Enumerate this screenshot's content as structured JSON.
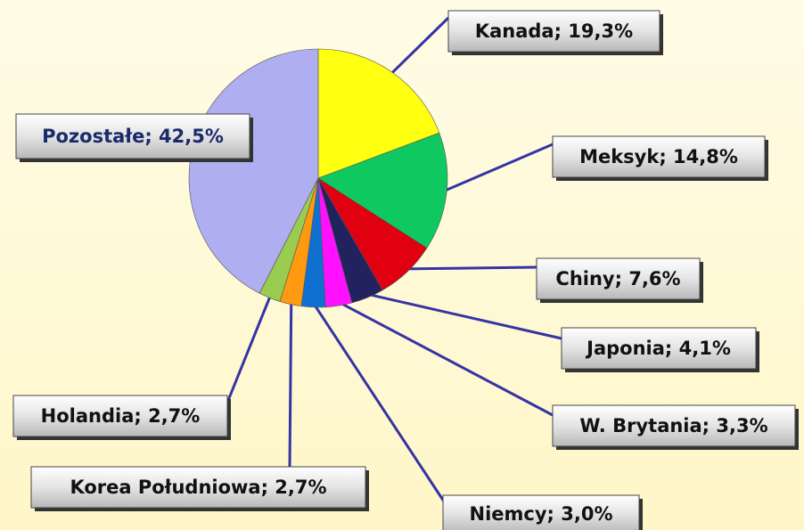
{
  "chart_data": {
    "type": "pie",
    "labels": [
      "Kanada; 19,3%",
      "Meksyk; 14,8%",
      "Chiny; 7,6%",
      "Japonia; 4,1%",
      "W. Brytania; 3,3%",
      "Niemcy; 3,0%",
      "Korea Południowa; 2,7%",
      "Holandia; 2,7%",
      "Pozostałe; 42,5%"
    ],
    "values": [
      19.3,
      14.8,
      7.6,
      4.1,
      3.3,
      3.0,
      2.7,
      2.7,
      42.5
    ],
    "colors": [
      "#ffff10",
      "#10c860",
      "#e00010",
      "#22225e",
      "#ff10ff",
      "#1070d0",
      "#ff9a10",
      "#9acc50",
      "#aeaef0"
    ]
  }
}
